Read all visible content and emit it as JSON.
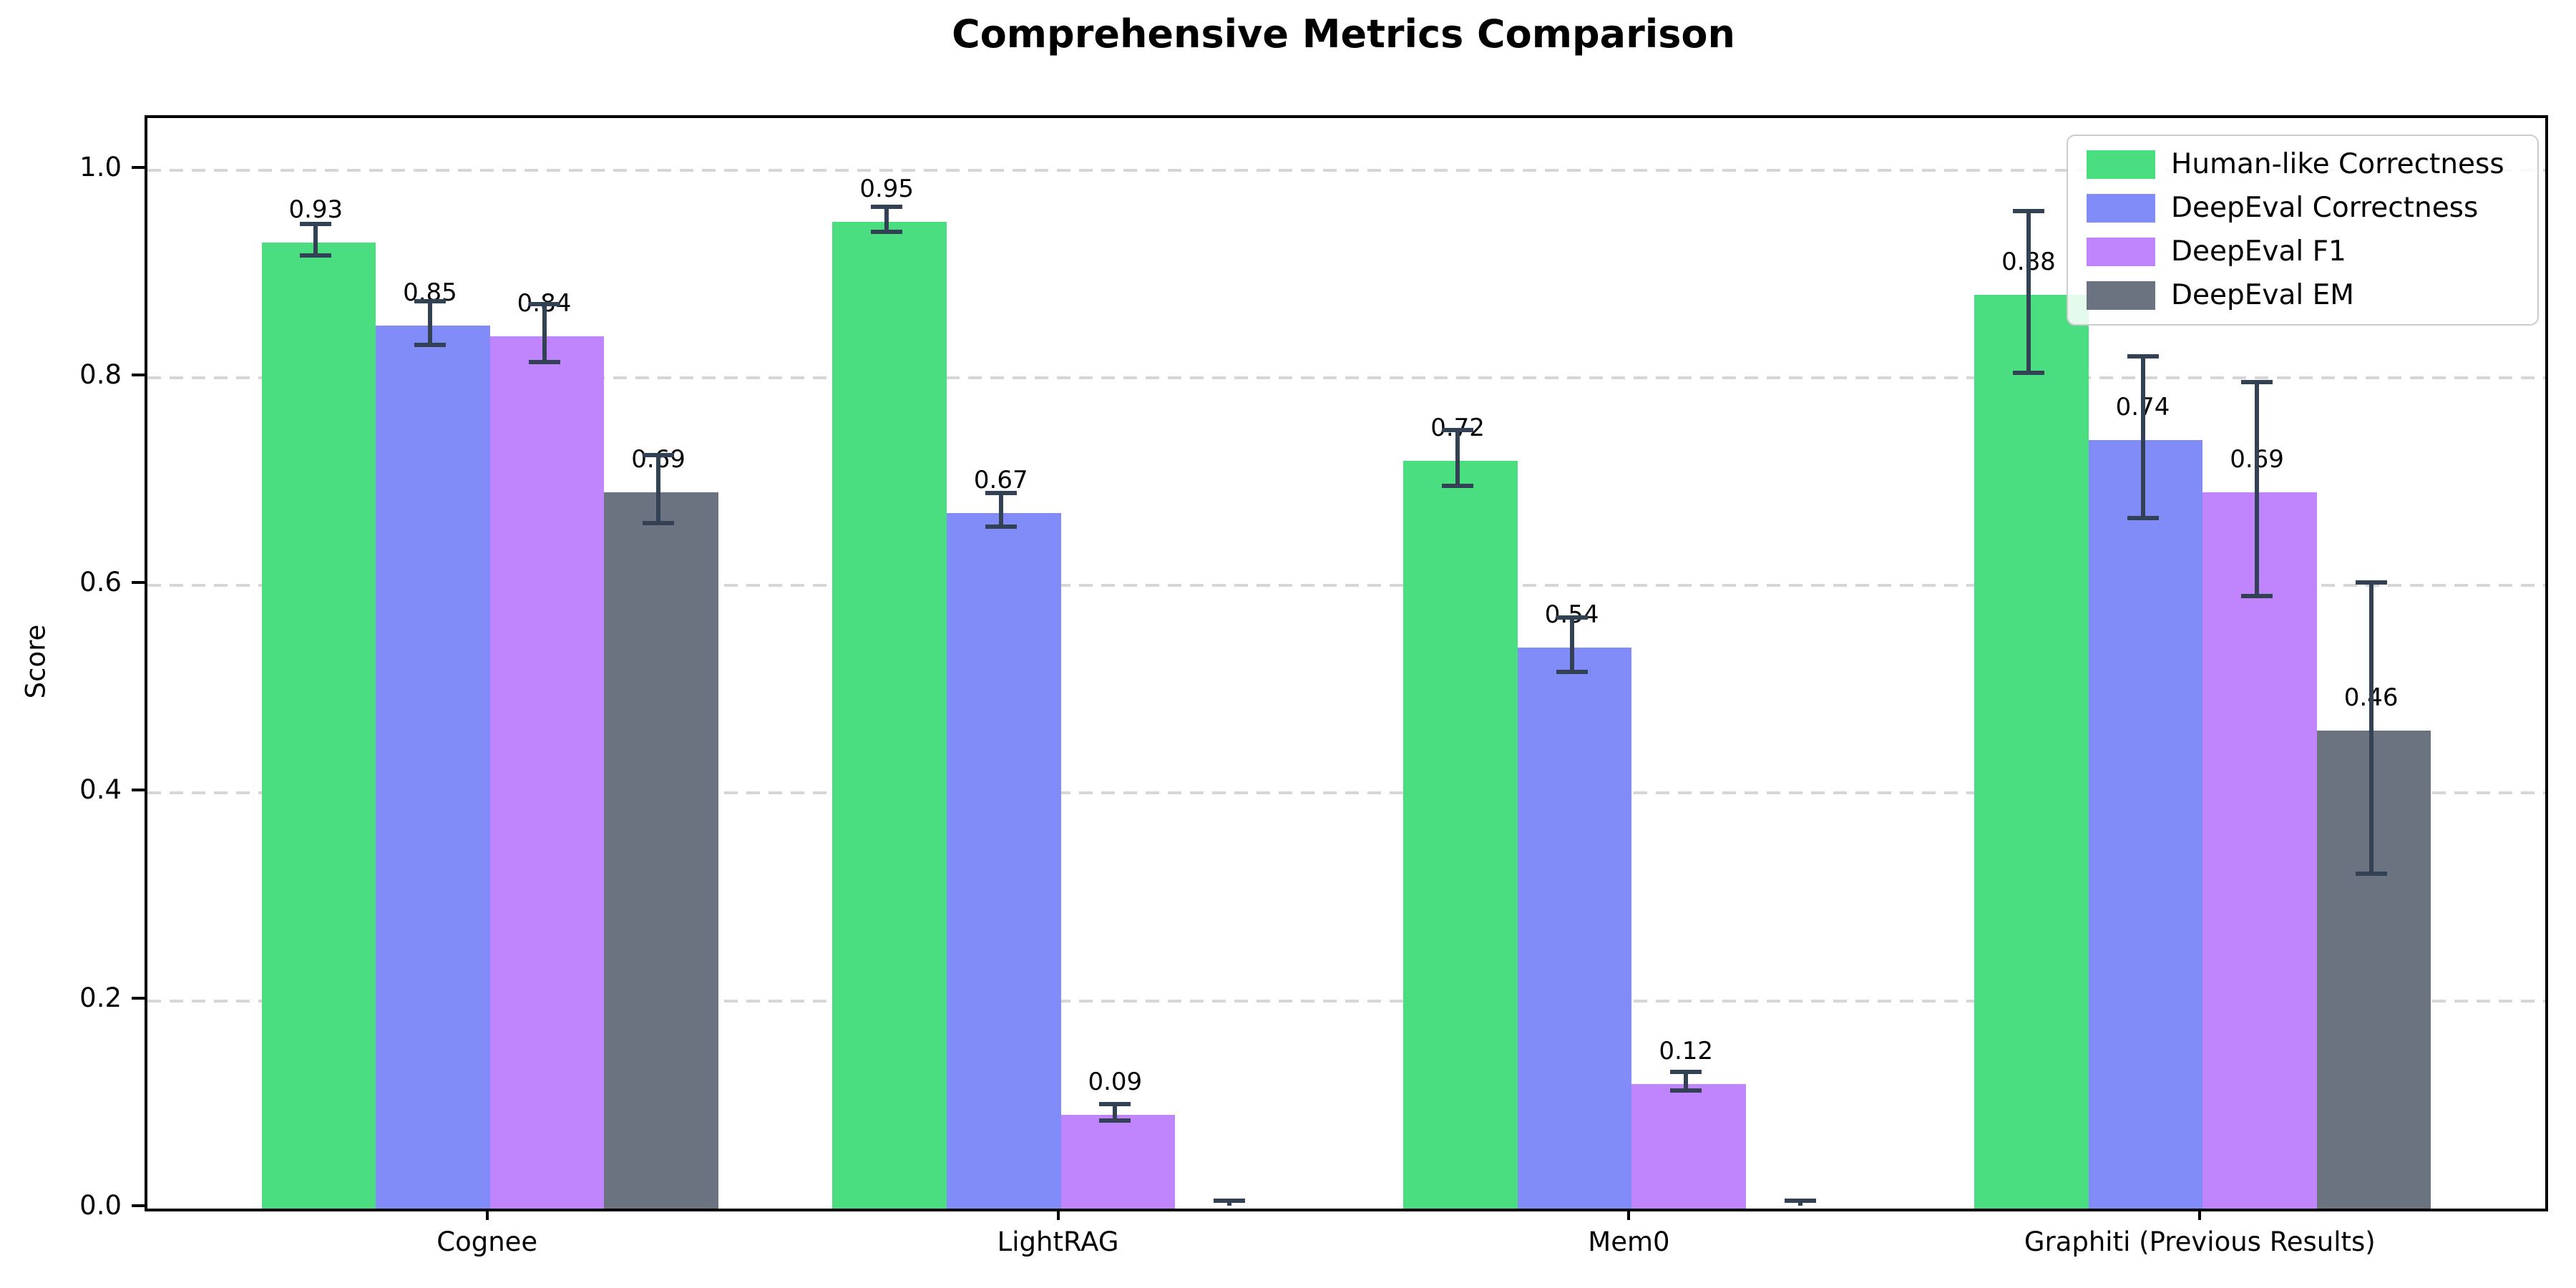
{
  "chart_data": {
    "type": "bar",
    "title": "Comprehensive Metrics Comparison",
    "ylabel": "Score",
    "xlabel": "",
    "categories": [
      "Cognee",
      "LightRAG",
      "Mem0",
      "Graphiti (Previous Results)"
    ],
    "series": [
      {
        "name": "Human-like Correctness",
        "color": "#4ade80",
        "values": [
          0.93,
          0.95,
          0.72,
          0.88
        ],
        "errors": [
          0.015,
          0.012,
          0.027,
          0.078
        ],
        "labels": [
          "0.93",
          "0.95",
          "0.72",
          "0.88"
        ]
      },
      {
        "name": "DeepEval Correctness",
        "color": "#818cf8",
        "values": [
          0.85,
          0.67,
          0.54,
          0.74
        ],
        "errors": [
          0.021,
          0.016,
          0.026,
          0.078
        ],
        "labels": [
          "0.85",
          "0.67",
          "0.54",
          "0.74"
        ]
      },
      {
        "name": "DeepEval F1",
        "color": "#c084fc",
        "values": [
          0.84,
          0.09,
          0.12,
          0.69
        ],
        "errors": [
          0.028,
          0.008,
          0.009,
          0.103
        ],
        "labels": [
          "0.84",
          "0.09",
          "0.12",
          "0.69"
        ]
      },
      {
        "name": "DeepEval EM",
        "color": "#6b7280",
        "values": [
          0.69,
          0.0,
          0.0,
          0.46
        ],
        "errors": [
          0.033,
          0.005,
          0.005,
          0.14
        ],
        "labels": [
          "0.69",
          "",
          "",
          "0.46"
        ]
      }
    ],
    "yticks": [
      "0.0",
      "0.2",
      "0.4",
      "0.6",
      "0.8",
      "1.0"
    ],
    "ylim": [
      0,
      1.05
    ],
    "grid": "horizontal-dashed",
    "legend_position": "upper right",
    "error_bar_color": "#334155",
    "grid_color": "#d6d6d6",
    "axis_color": "#000000"
  }
}
